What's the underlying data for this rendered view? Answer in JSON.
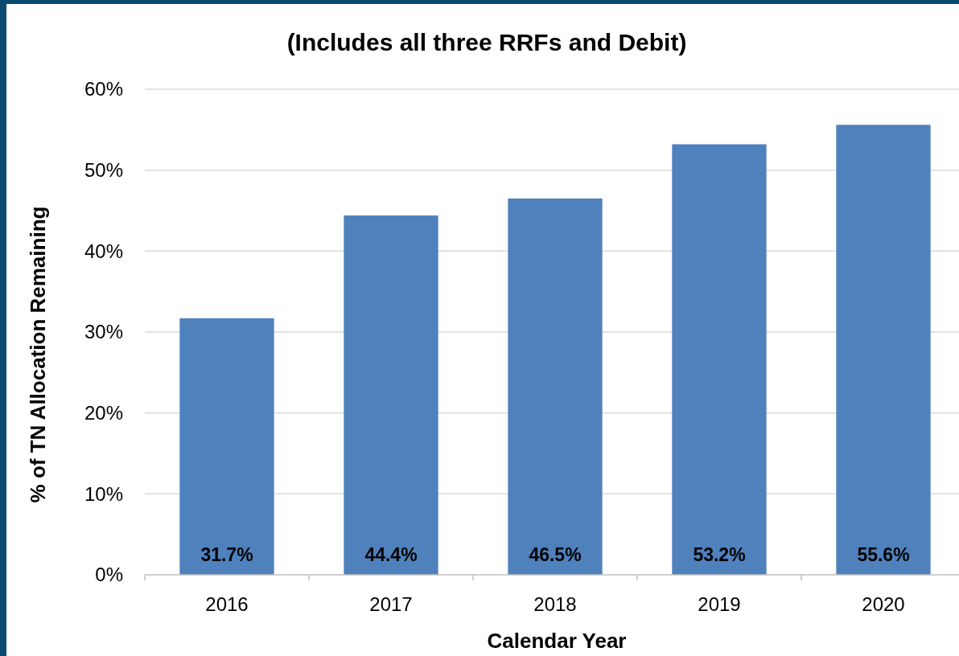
{
  "chart_data": {
    "type": "bar",
    "title": "(Includes all three RRFs and Debit)",
    "xlabel": "Calendar Year",
    "ylabel": "% of TN Allocation Remaining",
    "categories": [
      "2016",
      "2017",
      "2018",
      "2019",
      "2020"
    ],
    "values": [
      31.7,
      44.4,
      46.5,
      53.2,
      55.6
    ],
    "value_labels": [
      "31.7%",
      "44.4%",
      "46.5%",
      "53.2%",
      "55.6%"
    ],
    "color": "#4f81bd",
    "ylim": [
      0,
      60
    ],
    "yticks": [
      {
        "value": 0,
        "label": "0%"
      },
      {
        "value": 10,
        "label": "10%"
      },
      {
        "value": 20,
        "label": "20%"
      },
      {
        "value": 30,
        "label": "30%"
      },
      {
        "value": 40,
        "label": "40%"
      },
      {
        "value": 50,
        "label": "50%"
      },
      {
        "value": 60,
        "label": "60%"
      }
    ],
    "grid": "y"
  }
}
